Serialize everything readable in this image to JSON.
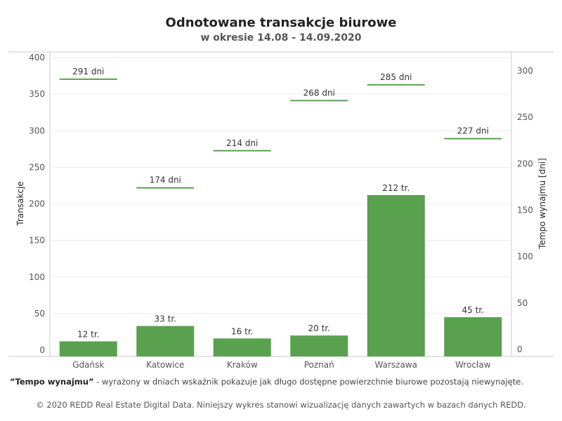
{
  "title": "Odnotowane transakcje biurowe",
  "subtitle": "w okresie 14.08 - 14.09.2020",
  "note": {
    "term": "”Tempo wynajmu”",
    "text": " - wyrażony w dniach wskaźnik pokazuje jak długo dostępne powierzchnie biurowe pozostają niewynajęte."
  },
  "copyright": "© 2020 REDD Real Estate Digital Data. Niniejszy wykres stanowi wizualizację danych zawartych w bazach danych REDD.",
  "colors": {
    "bar": "#59a14f",
    "line": "#59a14f",
    "grid": "#ececec",
    "axis": "#c8c8c8"
  },
  "chart_data": {
    "type": "bar",
    "categories": [
      "Gdańsk",
      "Katowice",
      "Kraków",
      "Poznań",
      "Warszawa",
      "Wrocław"
    ],
    "series": [
      {
        "name": "Transakcje",
        "values": [
          12,
          33,
          16,
          20,
          212,
          45
        ],
        "labels": [
          "12 tr.",
          "33 tr.",
          "16 tr.",
          "20 tr.",
          "212 tr.",
          "45 tr."
        ],
        "axis": "left",
        "mark": "bar"
      },
      {
        "name": "Tempo wynajmu [dni]",
        "values": [
          291,
          174,
          214,
          268,
          285,
          227
        ],
        "labels": [
          "291 dni",
          "174 dni",
          "214 dni",
          "268 dni",
          "285 dni",
          "227 dni"
        ],
        "axis": "right",
        "mark": "line-marker"
      }
    ],
    "ylabel": "Transakcje",
    "ylabel_right": "Tempo wynajmu [dni]",
    "ylim": [
      0,
      400
    ],
    "ylim_right": [
      0,
      300
    ],
    "yticks": [
      0,
      50,
      100,
      150,
      200,
      250,
      300,
      350,
      400
    ],
    "yticks_right": [
      0,
      50,
      100,
      150,
      200,
      250,
      300
    ],
    "grid": true
  }
}
